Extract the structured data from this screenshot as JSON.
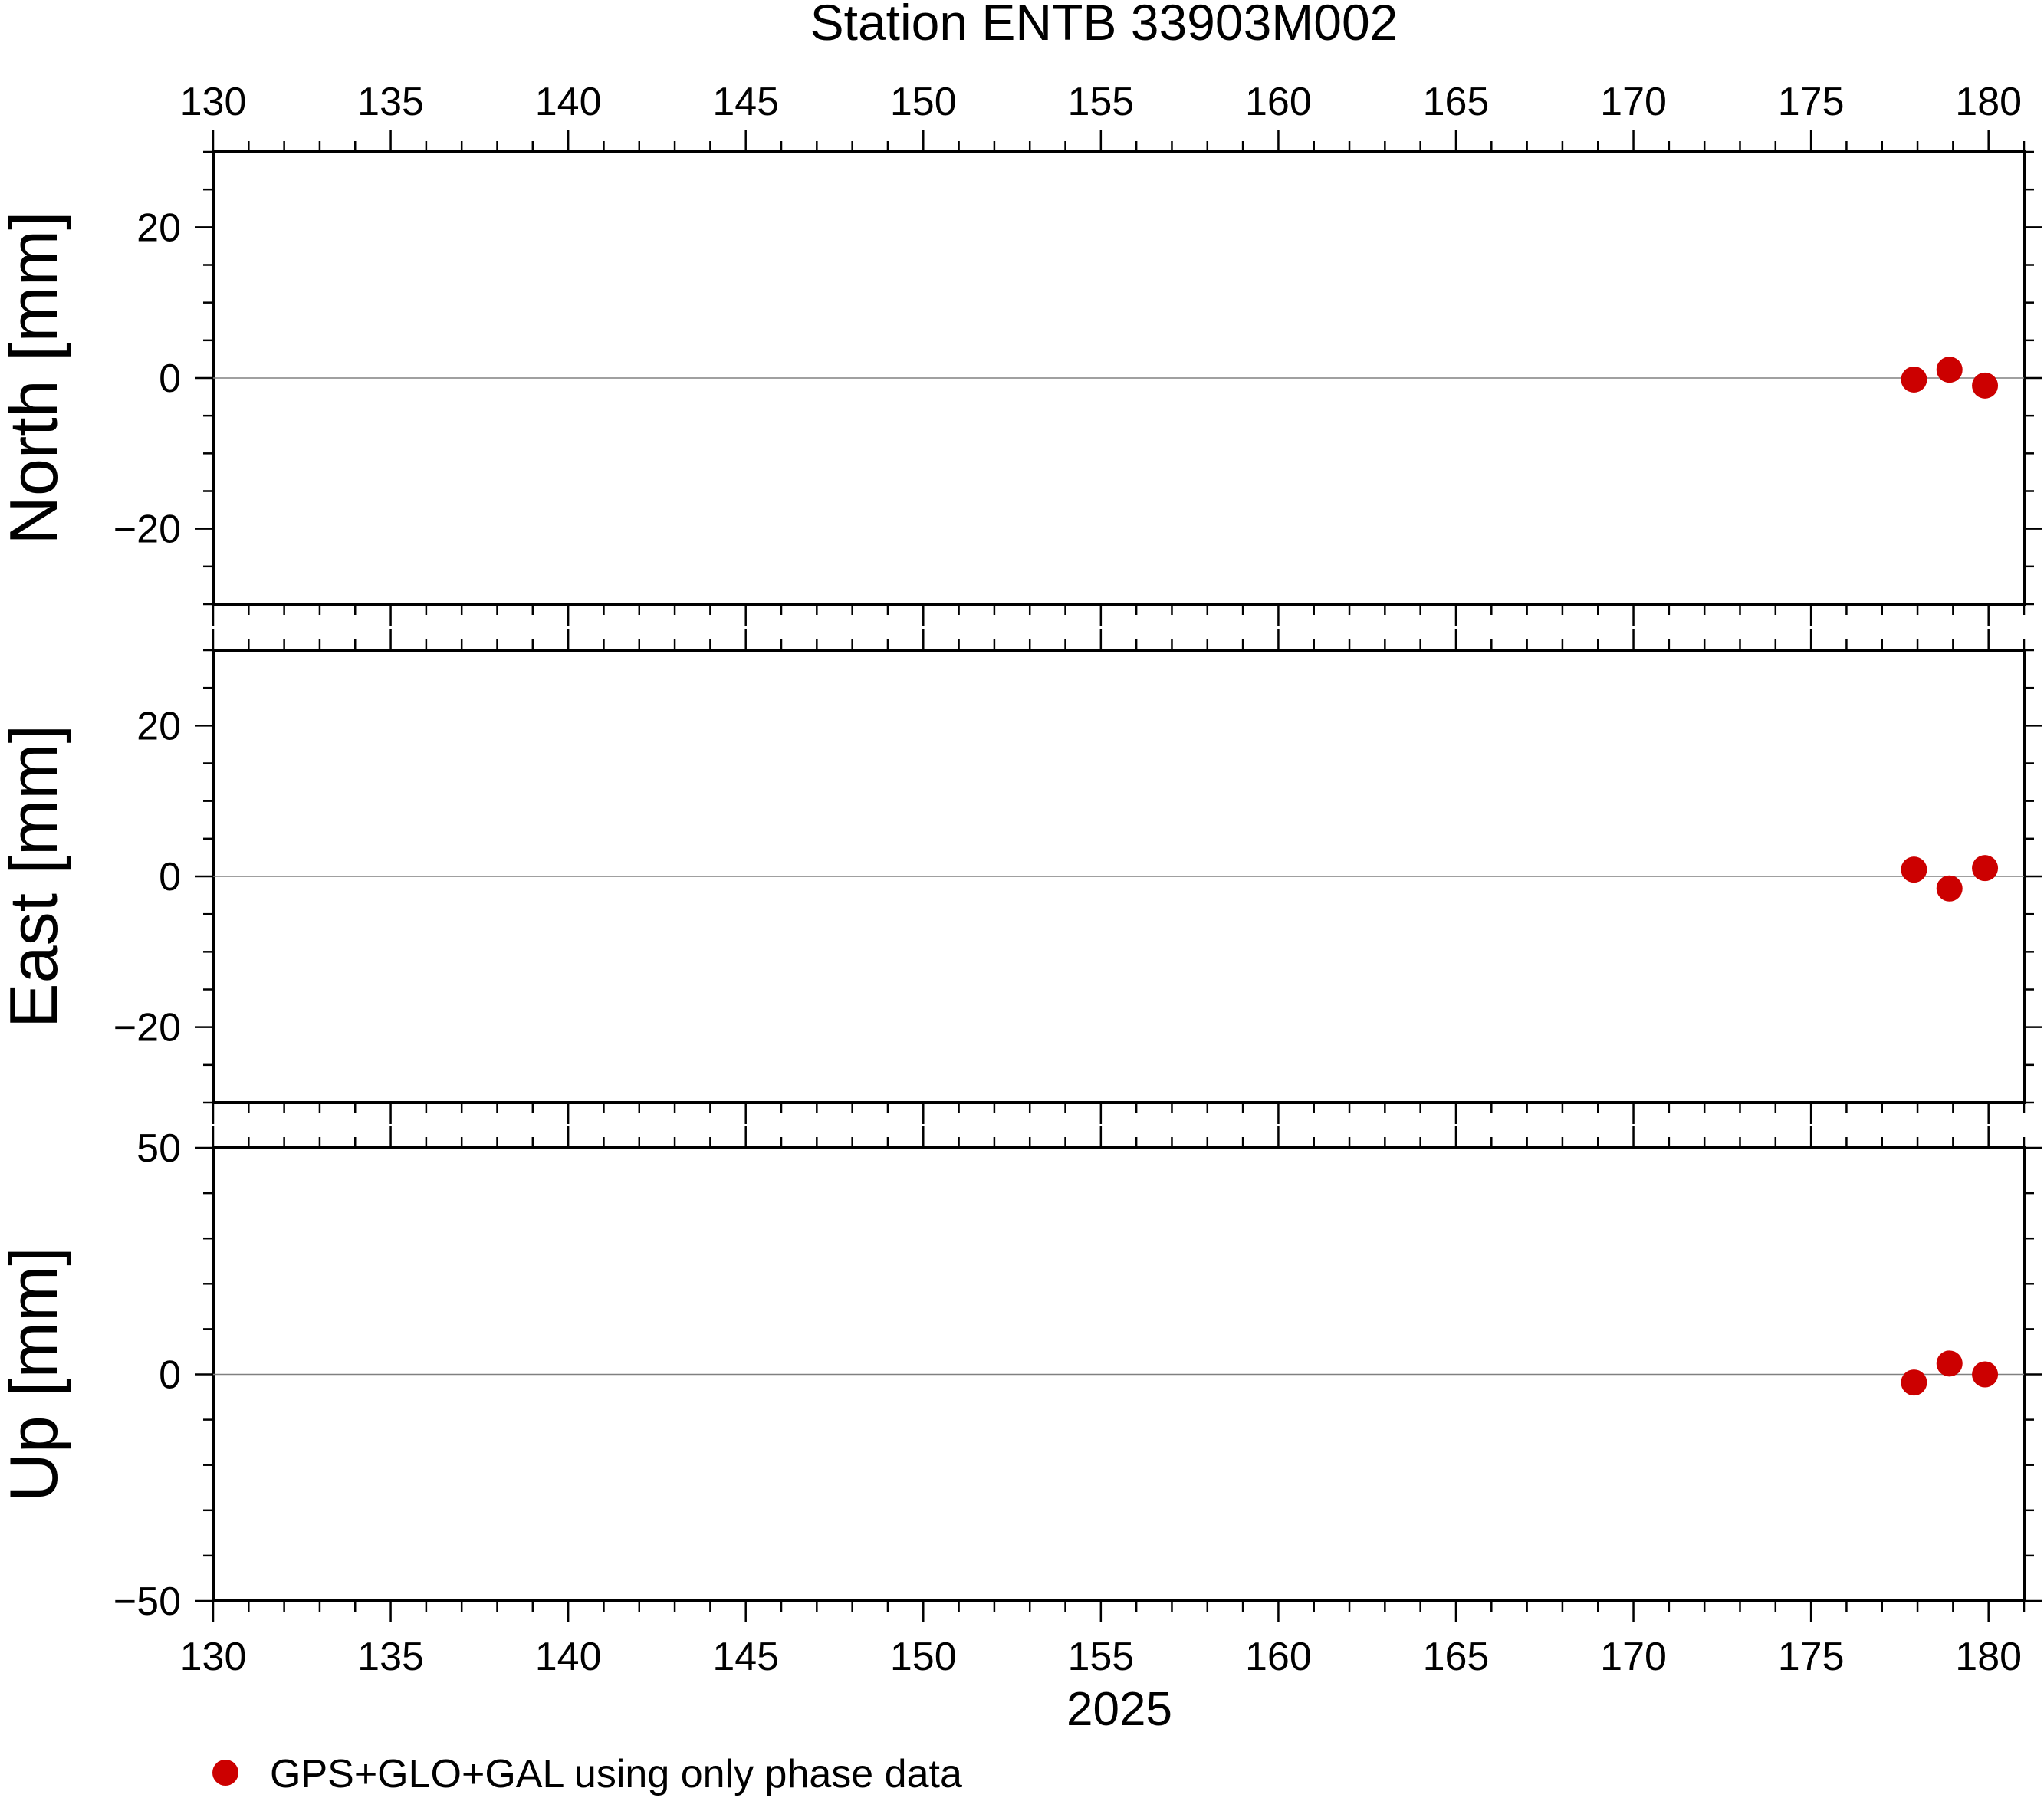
{
  "chart_data": {
    "type": "scatter",
    "title": "Station ENTB 33903M002",
    "xlabel": "2025",
    "x_ticks": [
      "130",
      "135",
      "140",
      "145",
      "150",
      "155",
      "160",
      "165",
      "170",
      "175",
      "180"
    ],
    "xlim": [
      130,
      181
    ],
    "grid": false,
    "legend": {
      "placement": "bottom-left",
      "label": "GPS+GLO+GAL using only phase data",
      "color": "#cc0000"
    },
    "marker_color": "#cc0000",
    "panels": [
      {
        "ylabel": "North [mm]",
        "ylim": [
          -30,
          30
        ],
        "y_ticks": [
          20,
          0,
          -20
        ],
        "y_tick_labels": [
          "20",
          "0",
          "−20"
        ],
        "points": [
          {
            "x": 177.9,
            "y": -0.2
          },
          {
            "x": 178.9,
            "y": 1.1
          },
          {
            "x": 179.9,
            "y": -1.0
          }
        ]
      },
      {
        "ylabel": "East [mm]",
        "ylim": [
          -30,
          30
        ],
        "y_ticks": [
          20,
          0,
          -20
        ],
        "y_tick_labels": [
          "20",
          "0",
          "−20"
        ],
        "points": [
          {
            "x": 177.9,
            "y": 0.9
          },
          {
            "x": 178.9,
            "y": -1.6
          },
          {
            "x": 179.9,
            "y": 1.1
          }
        ]
      },
      {
        "ylabel": "Up [mm]",
        "ylim": [
          -50,
          50
        ],
        "y_ticks": [
          50,
          0,
          -50
        ],
        "y_tick_labels": [
          "50",
          "0",
          "−50"
        ],
        "points": [
          {
            "x": 177.9,
            "y": -1.8
          },
          {
            "x": 178.9,
            "y": 2.4
          },
          {
            "x": 179.9,
            "y": 0.0
          }
        ]
      }
    ]
  }
}
